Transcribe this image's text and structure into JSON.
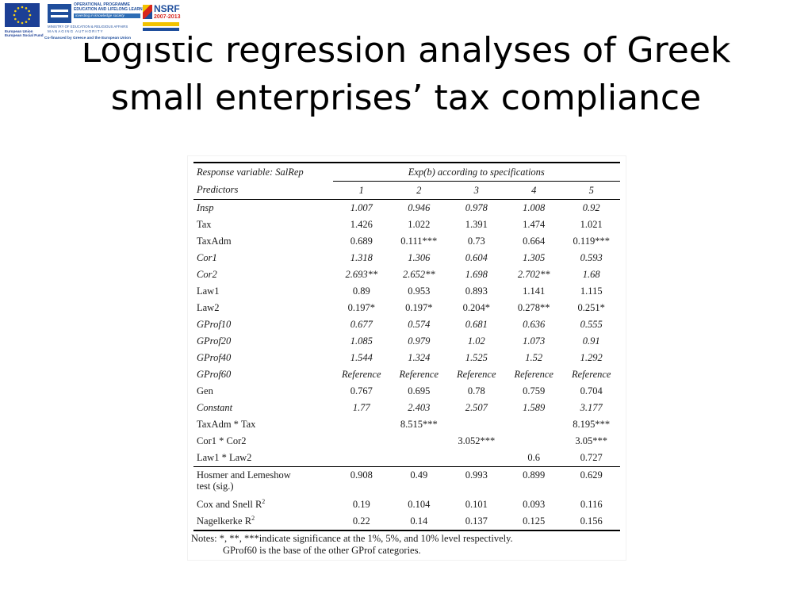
{
  "logos": {
    "eu": {
      "caption_line1": "European Union",
      "caption_line2": "European Social Fund",
      "primary_color": "#1c3f95"
    },
    "operational_programme": {
      "line1": "OPERATIONAL PROGRAMME",
      "line2": "EDUCATION AND LIFELONG LEARNING",
      "line3": "investing in knowledge society",
      "line4": "MINISTRY OF EDUCATION & RELIGIOUS AFFAIRS",
      "line5": "MANAGING AUTHORITY",
      "line6": "Co-financed by Greece and the European Union"
    },
    "nsrf": {
      "name": "NSRF",
      "years": "2007-2013"
    }
  },
  "slide": {
    "title_line1": "Logistic regression analyses of Greek",
    "title_line2": "small enterprises’ tax compliance"
  },
  "table": {
    "response_label": "Response variable: SalRep",
    "spec_header": "Exp(b) according to specifications",
    "predictors_label": "Predictors",
    "spec_numbers": [
      "1",
      "2",
      "3",
      "4",
      "5"
    ],
    "rows": [
      {
        "name": "Insp",
        "italic": true,
        "values": [
          "1.007",
          "0.946",
          "0.978",
          "1.008",
          "0.92"
        ]
      },
      {
        "name": "Tax",
        "italic": false,
        "values": [
          "1.426",
          "1.022",
          "1.391",
          "1.474",
          "1.021"
        ]
      },
      {
        "name": "TaxAdm",
        "italic": false,
        "values": [
          "0.689",
          "0.111***",
          "0.73",
          "0.664",
          "0.119***"
        ]
      },
      {
        "name": "Cor1",
        "italic": true,
        "values": [
          "1.318",
          "1.306",
          "0.604",
          "1.305",
          "0.593"
        ]
      },
      {
        "name": "Cor2",
        "italic": true,
        "values": [
          "2.693**",
          "2.652**",
          "1.698",
          "2.702**",
          "1.68"
        ]
      },
      {
        "name": "Law1",
        "italic": false,
        "values": [
          "0.89",
          "0.953",
          "0.893",
          "1.141",
          "1.115"
        ]
      },
      {
        "name": "Law2",
        "italic": false,
        "values": [
          "0.197*",
          "0.197*",
          "0.204*",
          "0.278**",
          "0.251*"
        ]
      },
      {
        "name": "GProf10",
        "italic": true,
        "values": [
          "0.677",
          "0.574",
          "0.681",
          "0.636",
          "0.555"
        ]
      },
      {
        "name": "GProf20",
        "italic": true,
        "values": [
          "1.085",
          "0.979",
          "1.02",
          "1.073",
          "0.91"
        ]
      },
      {
        "name": "GProf40",
        "italic": true,
        "values": [
          "1.544",
          "1.324",
          "1.525",
          "1.52",
          "1.292"
        ]
      },
      {
        "name": "GProf60",
        "italic": true,
        "values": [
          "Reference",
          "Reference",
          "Reference",
          "Reference",
          "Reference"
        ]
      },
      {
        "name": "Gen",
        "italic": false,
        "values": [
          "0.767",
          "0.695",
          "0.78",
          "0.759",
          "0.704"
        ]
      },
      {
        "name": "Constant",
        "italic": true,
        "values": [
          "1.77",
          "2.403",
          "2.507",
          "1.589",
          "3.177"
        ]
      },
      {
        "name": "TaxAdm * Tax",
        "italic": false,
        "values": [
          "",
          "8.515***",
          "",
          "",
          "8.195***"
        ]
      },
      {
        "name": "Cor1 * Cor2",
        "italic": false,
        "values": [
          "",
          "",
          "3.052***",
          "",
          "3.05***"
        ]
      },
      {
        "name": "Law1 * Law2",
        "italic": false,
        "values": [
          "",
          "",
          "",
          "0.6",
          "0.727"
        ]
      }
    ],
    "stats": [
      {
        "name_line1": "Hosmer and Lemeshow",
        "name_line2": "test (sig.)",
        "values": [
          "0.908",
          "0.49",
          "0.993",
          "0.899",
          "0.629"
        ]
      },
      {
        "name": "Cox and Snell R",
        "sup": "2",
        "values": [
          "0.19",
          "0.104",
          "0.101",
          "0.093",
          "0.116"
        ]
      },
      {
        "name": "Nagelkerke R",
        "sup": "2",
        "values": [
          "0.22",
          "0.14",
          "0.137",
          "0.125",
          "0.156"
        ]
      }
    ],
    "notes_line1": "Notes: *, **, ***indicate significance at the 1%, 5%, and 10% level respectively.",
    "notes_line2": "GProf60 is the base of the other GProf categories."
  }
}
